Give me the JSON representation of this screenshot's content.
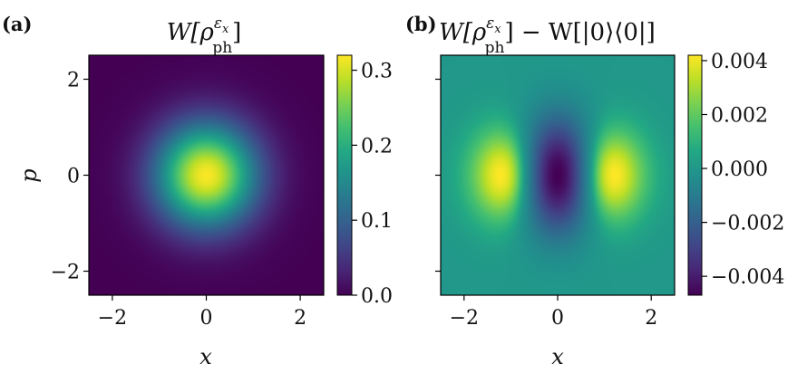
{
  "chart_data": [
    {
      "type": "heatmap",
      "panel": "(a)",
      "title": {
        "base": "W[ρ",
        "sup": "ε",
        "sup_sub": "x",
        "sub": "ph",
        "end": "]"
      },
      "xlabel": "x",
      "ylabel": "p",
      "xlim": [
        -2.5,
        2.5
      ],
      "ylim": [
        -2.5,
        2.5
      ],
      "xticks": [
        {
          "value": -2,
          "label": "−2"
        },
        {
          "value": 0,
          "label": "0"
        },
        {
          "value": 2,
          "label": "2"
        }
      ],
      "yticks": [
        {
          "value": -2,
          "label": "−2"
        },
        {
          "value": 0,
          "label": "0"
        },
        {
          "value": 2,
          "label": "2"
        }
      ],
      "colorbar": {
        "min": 0.0,
        "max": 0.32,
        "ticks": [
          {
            "value": 0.0,
            "label": "0.0"
          },
          {
            "value": 0.1,
            "label": "0.1"
          },
          {
            "value": 0.2,
            "label": "0.2"
          },
          {
            "value": 0.3,
            "label": "0.3"
          }
        ]
      },
      "field": {
        "kind": "gaussian",
        "peak_value": 0.318,
        "peak_x": 0,
        "peak_p": 0,
        "sigma": 0.75
      },
      "colormap": "viridis"
    },
    {
      "type": "heatmap",
      "panel": "(b)",
      "title": {
        "base": "W[ρ",
        "sup": "ε",
        "sup_sub": "x",
        "sub": "ph",
        "end": "] − W[|0⟩⟨0|]"
      },
      "xlabel": "x",
      "ylabel": "",
      "xlim": [
        -2.5,
        2.5
      ],
      "ylim": [
        -2.5,
        2.5
      ],
      "xticks": [
        {
          "value": -2,
          "label": "−2"
        },
        {
          "value": 0,
          "label": "0"
        },
        {
          "value": 2,
          "label": "2"
        }
      ],
      "yticks": [
        {
          "value": -2,
          "label": ""
        },
        {
          "value": 0,
          "label": ""
        },
        {
          "value": 2,
          "label": ""
        }
      ],
      "colorbar": {
        "min": -0.0047,
        "max": 0.0042,
        "ticks": [
          {
            "value": 0.004,
            "label": "0.004"
          },
          {
            "value": 0.002,
            "label": "0.002"
          },
          {
            "value": 0.0,
            "label": "0.000"
          },
          {
            "value": -0.002,
            "label": "−0.002"
          },
          {
            "value": -0.004,
            "label": "−0.004"
          }
        ]
      },
      "field": {
        "kind": "difference",
        "positive_peaks": [
          {
            "x": -1.2,
            "p": 0,
            "value": 0.0042
          },
          {
            "x": 1.2,
            "p": 0,
            "value": 0.0042
          }
        ],
        "negative_peak": {
          "x": 0,
          "p": 0,
          "value": -0.0047
        }
      },
      "colormap": "viridis"
    }
  ]
}
